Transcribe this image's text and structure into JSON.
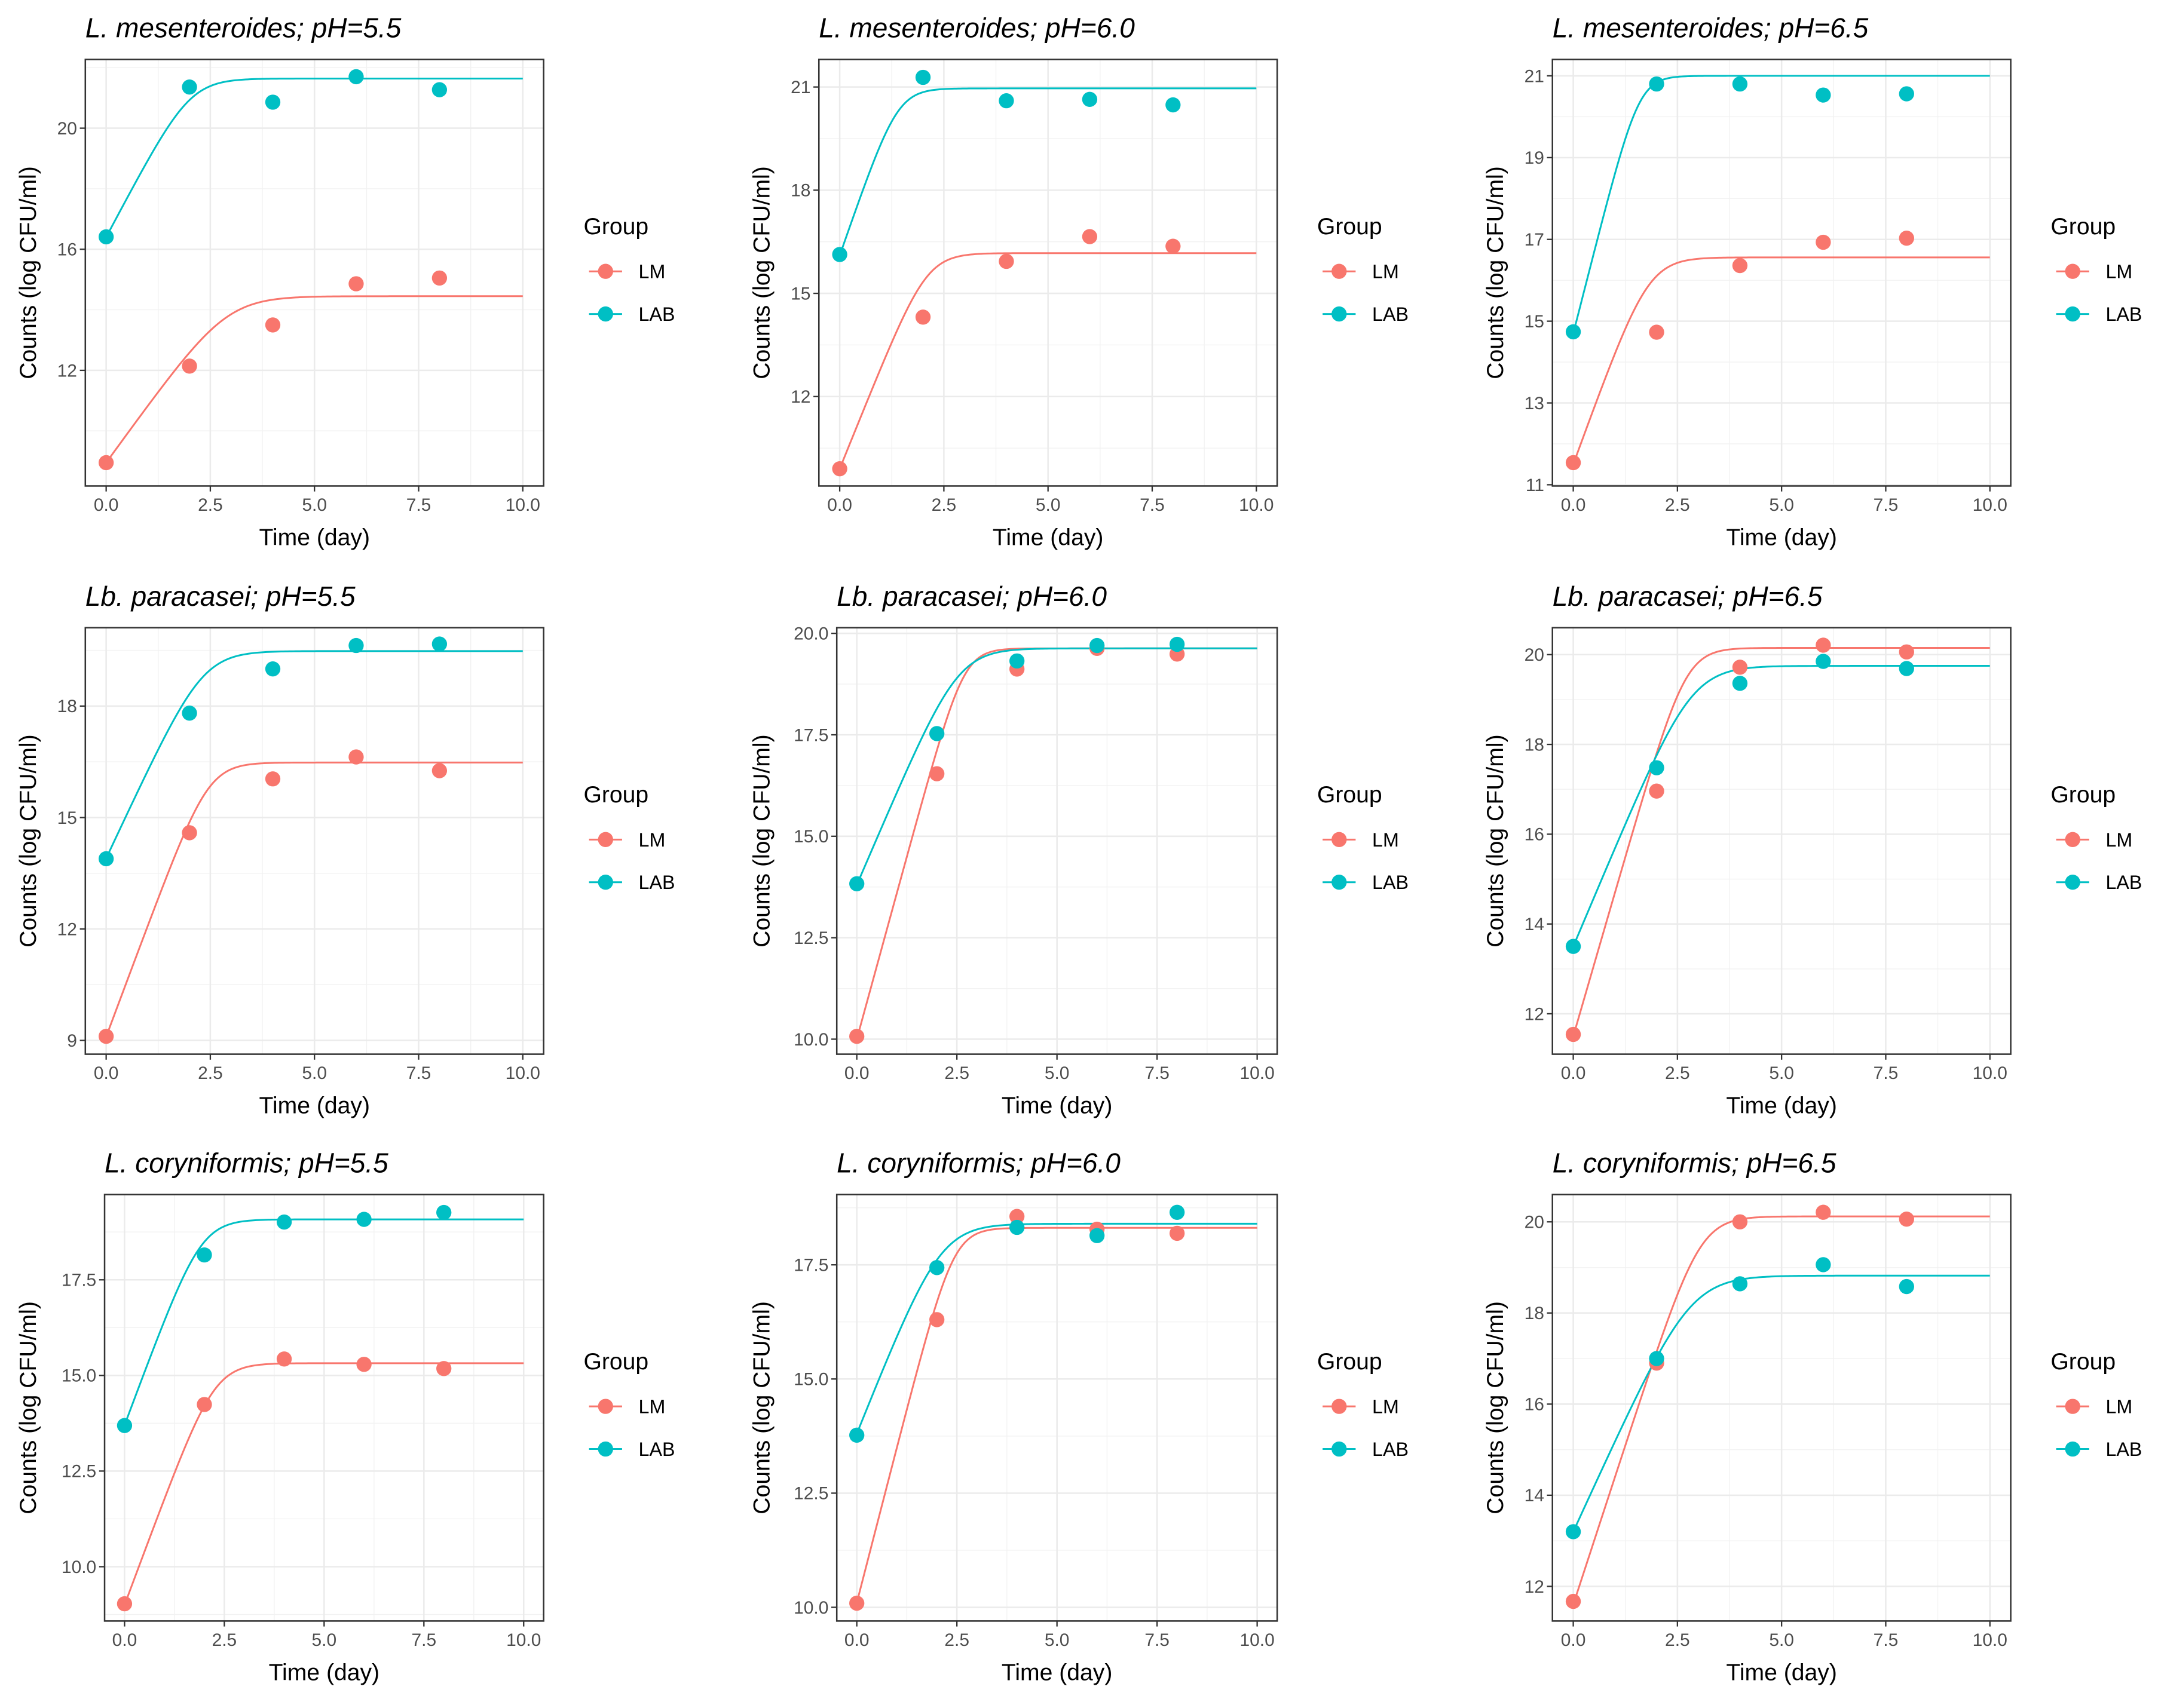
{
  "colors": {
    "LM": "#F8766D",
    "LAB": "#00BFC4"
  },
  "chart_data": [
    {
      "type": "scatter",
      "title": "L. mesenteroides; pH=5.5",
      "xlabel": "Time (day)",
      "ylabel": "Counts (log CFU/ml)",
      "xlim": [
        -0.5,
        10.5
      ],
      "xticks": [
        "0.0",
        "2.5",
        "5.0",
        "7.5",
        "10.0"
      ],
      "ylim": [
        8.18,
        22.27
      ],
      "yticks": [
        "12",
        "16",
        "20"
      ],
      "grid": true,
      "legend": {
        "title": "Group",
        "position": "right",
        "entries": [
          "LM",
          "LAB"
        ]
      },
      "x": [
        0,
        2,
        4,
        6,
        8
      ],
      "series": [
        {
          "name": "LM",
          "values": [
            8.95,
            12.14,
            13.5,
            14.86,
            15.05
          ],
          "fit": {
            "y0": 8.95,
            "ymax": 14.45,
            "mu": 1.9
          }
        },
        {
          "name": "LAB",
          "values": [
            16.41,
            21.36,
            20.86,
            21.7,
            21.27
          ],
          "fit": {
            "y0": 16.4,
            "ymax": 21.64,
            "mu": 2.6
          }
        }
      ]
    },
    {
      "type": "scatter",
      "title": "L. mesenteroides; pH=6.0",
      "xlabel": "Time (day)",
      "ylabel": "Counts (log CFU/ml)",
      "xlim": [
        -0.5,
        10.5
      ],
      "xticks": [
        "0.0",
        "2.5",
        "5.0",
        "7.5",
        "10.0"
      ],
      "ylim": [
        9.4,
        21.8
      ],
      "yticks": [
        "12",
        "15",
        "18",
        "21"
      ],
      "grid": true,
      "legend": {
        "title": "Group",
        "position": "right",
        "entries": [
          "LM",
          "LAB"
        ]
      },
      "x": [
        0,
        2,
        4,
        6,
        8
      ],
      "series": [
        {
          "name": "LM",
          "values": [
            9.9,
            14.31,
            15.93,
            16.65,
            16.37
          ],
          "fit": {
            "y0": 9.9,
            "ymax": 16.17,
            "mu": 3.0
          }
        },
        {
          "name": "LAB",
          "values": [
            16.13,
            21.28,
            20.6,
            20.64,
            20.48
          ],
          "fit": {
            "y0": 16.1,
            "ymax": 20.96,
            "mu": 3.5
          }
        }
      ]
    },
    {
      "type": "scatter",
      "title": "L. mesenteroides; pH=6.5",
      "xlabel": "Time (day)",
      "ylabel": "Counts (log CFU/ml)",
      "xlim": [
        -0.5,
        10.5
      ],
      "xticks": [
        "0.0",
        "2.5",
        "5.0",
        "7.5",
        "10.0"
      ],
      "ylim": [
        10.97,
        21.4
      ],
      "yticks": [
        "11",
        "13",
        "15",
        "17",
        "19",
        "21"
      ],
      "grid": true,
      "legend": {
        "title": "Group",
        "position": "right",
        "entries": [
          "LM",
          "LAB"
        ]
      },
      "x": [
        0,
        2,
        4,
        6,
        8
      ],
      "series": [
        {
          "name": "LM",
          "values": [
            11.54,
            14.73,
            16.36,
            16.93,
            17.03
          ],
          "fit": {
            "y0": 11.5,
            "ymax": 16.56,
            "mu": 2.8
          }
        },
        {
          "name": "LAB",
          "values": [
            14.74,
            20.8,
            20.8,
            20.53,
            20.56
          ],
          "fit": {
            "y0": 14.7,
            "ymax": 21.0,
            "mu": 4.0
          }
        }
      ]
    },
    {
      "type": "scatter",
      "title": "Lb. paracasei; pH=5.5",
      "xlabel": "Time (day)",
      "ylabel": "Counts (log CFU/ml)",
      "xlim": [
        -0.5,
        10.5
      ],
      "xticks": [
        "0.0",
        "2.5",
        "5.0",
        "7.5",
        "10.0"
      ],
      "ylim": [
        8.63,
        20.11
      ],
      "yticks": [
        "9",
        "12",
        "15",
        "18"
      ],
      "grid": true,
      "legend": {
        "title": "Group",
        "position": "right",
        "entries": [
          "LM",
          "LAB"
        ]
      },
      "x": [
        0,
        2,
        4,
        6,
        8
      ],
      "series": [
        {
          "name": "LM",
          "values": [
            9.11,
            14.59,
            16.04,
            16.63,
            16.26
          ],
          "fit": {
            "y0": 9.1,
            "ymax": 16.48,
            "mu": 3.0
          }
        },
        {
          "name": "LAB",
          "values": [
            13.89,
            17.81,
            19.0,
            19.63,
            19.67
          ],
          "fit": {
            "y0": 13.9,
            "ymax": 19.48,
            "mu": 2.4
          }
        }
      ]
    },
    {
      "type": "scatter",
      "title": "Lb. paracasei; pH=6.0",
      "xlabel": "Time (day)",
      "ylabel": "Counts (log CFU/ml)",
      "xlim": [
        -0.5,
        10.5
      ],
      "xticks": [
        "0.0",
        "2.5",
        "5.0",
        "7.5",
        "10.0"
      ],
      "ylim": [
        9.63,
        20.14
      ],
      "yticks": [
        "10.0",
        "12.5",
        "15.0",
        "17.5",
        "20.0"
      ],
      "grid": true,
      "legend": {
        "title": "Group",
        "position": "right",
        "entries": [
          "LM",
          "LAB"
        ]
      },
      "x": [
        0,
        2,
        4,
        6,
        8
      ],
      "series": [
        {
          "name": "LM",
          "values": [
            10.07,
            16.54,
            19.12,
            19.63,
            19.49
          ],
          "fit": {
            "y0": 10.0,
            "ymax": 19.63,
            "mu": 3.6
          }
        },
        {
          "name": "LAB",
          "values": [
            13.83,
            17.53,
            19.32,
            19.7,
            19.73
          ],
          "fit": {
            "y0": 13.8,
            "ymax": 19.63,
            "mu": 2.3
          }
        }
      ]
    },
    {
      "type": "scatter",
      "title": "Lb. paracasei; pH=6.5",
      "xlabel": "Time (day)",
      "ylabel": "Counts (log CFU/ml)",
      "xlim": [
        -0.5,
        10.5
      ],
      "xticks": [
        "0.0",
        "2.5",
        "5.0",
        "7.5",
        "10.0"
      ],
      "ylim": [
        11.1,
        20.6
      ],
      "yticks": [
        "12",
        "14",
        "16",
        "18",
        "20"
      ],
      "grid": true,
      "legend": {
        "title": "Group",
        "position": "right",
        "entries": [
          "LM",
          "LAB"
        ]
      },
      "x": [
        0,
        2,
        4,
        6,
        8
      ],
      "series": [
        {
          "name": "LM",
          "values": [
            11.54,
            16.96,
            19.72,
            20.21,
            20.06
          ],
          "fit": {
            "y0": 11.5,
            "ymax": 20.15,
            "mu": 3.2
          }
        },
        {
          "name": "LAB",
          "values": [
            13.5,
            17.48,
            19.36,
            19.85,
            19.69
          ],
          "fit": {
            "y0": 13.5,
            "ymax": 19.75,
            "mu": 2.2
          }
        }
      ]
    },
    {
      "type": "scatter",
      "title": "L. coryniformis; pH=5.5",
      "xlabel": "Time (day)",
      "ylabel": "Counts (log CFU/ml)",
      "xlim": [
        -0.5,
        10.5
      ],
      "xticks": [
        "0.0",
        "2.5",
        "5.0",
        "7.5",
        "10.0"
      ],
      "ylim": [
        8.58,
        19.73
      ],
      "yticks": [
        "10.0",
        "12.5",
        "15.0",
        "17.5"
      ],
      "grid": true,
      "legend": {
        "title": "Group",
        "position": "right",
        "entries": [
          "LM",
          "LAB"
        ]
      },
      "x": [
        0,
        2,
        4,
        6,
        8
      ],
      "series": [
        {
          "name": "LM",
          "values": [
            9.03,
            14.24,
            15.43,
            15.29,
            15.18
          ],
          "fit": {
            "y0": 9.0,
            "ymax": 15.32,
            "mu": 2.8
          }
        },
        {
          "name": "LAB",
          "values": [
            13.69,
            18.15,
            19.01,
            19.08,
            19.26
          ],
          "fit": {
            "y0": 13.7,
            "ymax": 19.08,
            "mu": 2.8
          }
        }
      ]
    },
    {
      "type": "scatter",
      "title": "L. coryniformis; pH=6.0",
      "xlabel": "Time (day)",
      "ylabel": "Counts (log CFU/ml)",
      "xlim": [
        -0.5,
        10.5
      ],
      "xticks": [
        "0.0",
        "2.5",
        "5.0",
        "7.5",
        "10.0"
      ],
      "ylim": [
        9.7,
        19.04
      ],
      "yticks": [
        "10.0",
        "12.5",
        "15.0",
        "17.5"
      ],
      "grid": true,
      "legend": {
        "title": "Group",
        "position": "right",
        "entries": [
          "LM",
          "LAB"
        ]
      },
      "x": [
        0,
        2,
        4,
        6,
        8
      ],
      "series": [
        {
          "name": "LM",
          "values": [
            10.09,
            16.3,
            18.56,
            18.28,
            18.19
          ],
          "fit": {
            "y0": 10.1,
            "ymax": 18.31,
            "mu": 3.4
          }
        },
        {
          "name": "LAB",
          "values": [
            13.77,
            17.44,
            18.32,
            18.14,
            18.65
          ],
          "fit": {
            "y0": 13.8,
            "ymax": 18.4,
            "mu": 2.2
          }
        }
      ]
    },
    {
      "type": "scatter",
      "title": "L. coryniformis; pH=6.5",
      "xlabel": "Time (day)",
      "ylabel": "Counts (log CFU/ml)",
      "xlim": [
        -0.5,
        10.5
      ],
      "xticks": [
        "0.0",
        "2.5",
        "5.0",
        "7.5",
        "10.0"
      ],
      "ylim": [
        11.24,
        20.6
      ],
      "yticks": [
        "12",
        "14",
        "16",
        "18",
        "20"
      ],
      "grid": true,
      "legend": {
        "title": "Group",
        "position": "right",
        "entries": [
          "LM",
          "LAB"
        ]
      },
      "x": [
        0,
        2,
        4,
        6,
        8
      ],
      "series": [
        {
          "name": "LM",
          "values": [
            11.67,
            16.9,
            20.0,
            20.21,
            20.06
          ],
          "fit": {
            "y0": 11.6,
            "ymax": 20.12,
            "mu": 2.8
          }
        },
        {
          "name": "LAB",
          "values": [
            13.2,
            17.0,
            18.64,
            19.06,
            18.58
          ],
          "fit": {
            "y0": 13.2,
            "ymax": 18.82,
            "mu": 2.0
          }
        }
      ]
    }
  ]
}
